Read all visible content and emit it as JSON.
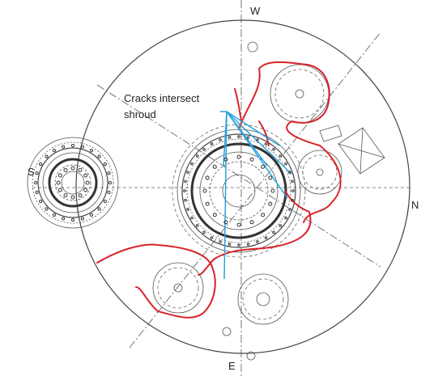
{
  "directions": {
    "west": "W",
    "south": "S",
    "north": "N",
    "east": "E"
  },
  "annotation": {
    "lines": [
      "Cracks intersect",
      "shroud"
    ]
  }
}
